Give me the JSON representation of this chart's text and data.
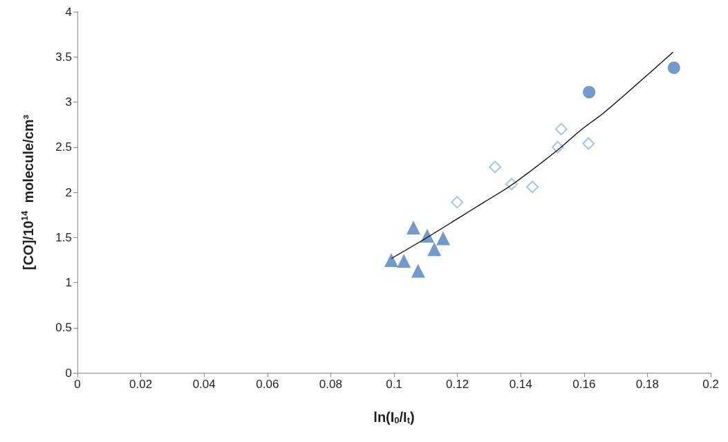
{
  "chart_data": {
    "type": "scatter",
    "xlabel": "ln(I$_{0}$/I$_{t}$)",
    "ylabel": "[CO]/10$^{14}$  molecule/cm³",
    "xlim": [
      0,
      0.2
    ],
    "xticks": [
      0,
      0.02,
      0.04,
      0.06,
      0.08,
      0.1,
      0.12,
      0.14,
      0.16,
      0.18,
      0.2
    ],
    "ylim": [
      0,
      4
    ],
    "yticks": [
      0,
      0.5,
      1,
      1.5,
      2,
      2.5,
      3,
      3.5,
      4
    ],
    "grid": false,
    "series": [
      {
        "marker": "triangle",
        "color": "#4f81bd",
        "x": [
          0.0991,
          0.1031,
          0.1061,
          0.1076,
          0.1105,
          0.1127,
          0.1155
        ],
        "values": [
          1.25,
          1.24,
          1.61,
          1.13,
          1.52,
          1.37,
          1.49
        ]
      },
      {
        "marker": "diamond",
        "color": "#95b3d7",
        "x": [
          0.1199,
          0.1319,
          0.1371,
          0.1437,
          0.1517,
          0.1528,
          0.1614
        ],
        "values": [
          1.89,
          2.28,
          2.09,
          2.06,
          2.5,
          2.7,
          2.54
        ]
      },
      {
        "marker": "circle",
        "color": "#4f81bd",
        "x": [
          0.1616,
          0.1884
        ],
        "values": [
          3.11,
          3.38
        ]
      },
      {
        "type": "line",
        "marker": "none",
        "color": "#000000",
        "x": [
          0.0993,
          0.1081,
          0.1197,
          0.1284,
          0.1371,
          0.1517,
          0.159,
          0.1662,
          0.1771,
          0.188
        ],
        "values": [
          1.27,
          1.45,
          1.7,
          1.89,
          2.08,
          2.47,
          2.69,
          2.88,
          3.21,
          3.55
        ]
      }
    ]
  }
}
